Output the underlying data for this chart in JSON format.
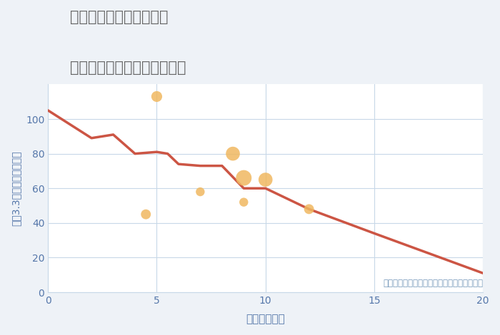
{
  "title_line1": "福岡県太宰府市向佐野の",
  "title_line2": "駅距離別中古マンション価格",
  "xlabel": "駅距離（分）",
  "ylabel": "坪（3.3㎡）単価（万円）",
  "annotation": "円の大きさは、取引のあった物件面積を示す",
  "background_color": "#eef2f7",
  "plot_bg_color": "#ffffff",
  "line_x": [
    0,
    2,
    3,
    4,
    5,
    5.5,
    6,
    7,
    8,
    9,
    10,
    12,
    15,
    20
  ],
  "line_y": [
    105,
    89,
    91,
    80,
    81,
    80,
    74,
    73,
    73,
    60,
    60,
    48,
    34,
    11
  ],
  "line_color": "#cc5544",
  "line_width": 2.5,
  "scatter_x": [
    5,
    4.5,
    7,
    8.5,
    9,
    9,
    10,
    12
  ],
  "scatter_y": [
    113,
    45,
    58,
    80,
    66,
    52,
    65,
    48
  ],
  "scatter_sizes": [
    120,
    100,
    80,
    200,
    250,
    80,
    200,
    100
  ],
  "scatter_color": "#f0b860",
  "scatter_alpha": 0.85,
  "xlim": [
    0,
    20
  ],
  "ylim": [
    0,
    120
  ],
  "xticks": [
    0,
    5,
    10,
    15,
    20
  ],
  "yticks": [
    0,
    20,
    40,
    60,
    80,
    100
  ],
  "grid_color": "#c8d8e8",
  "title_color": "#666666",
  "axis_label_color": "#5577aa",
  "tick_color": "#5577aa",
  "annotation_color": "#7799bb"
}
